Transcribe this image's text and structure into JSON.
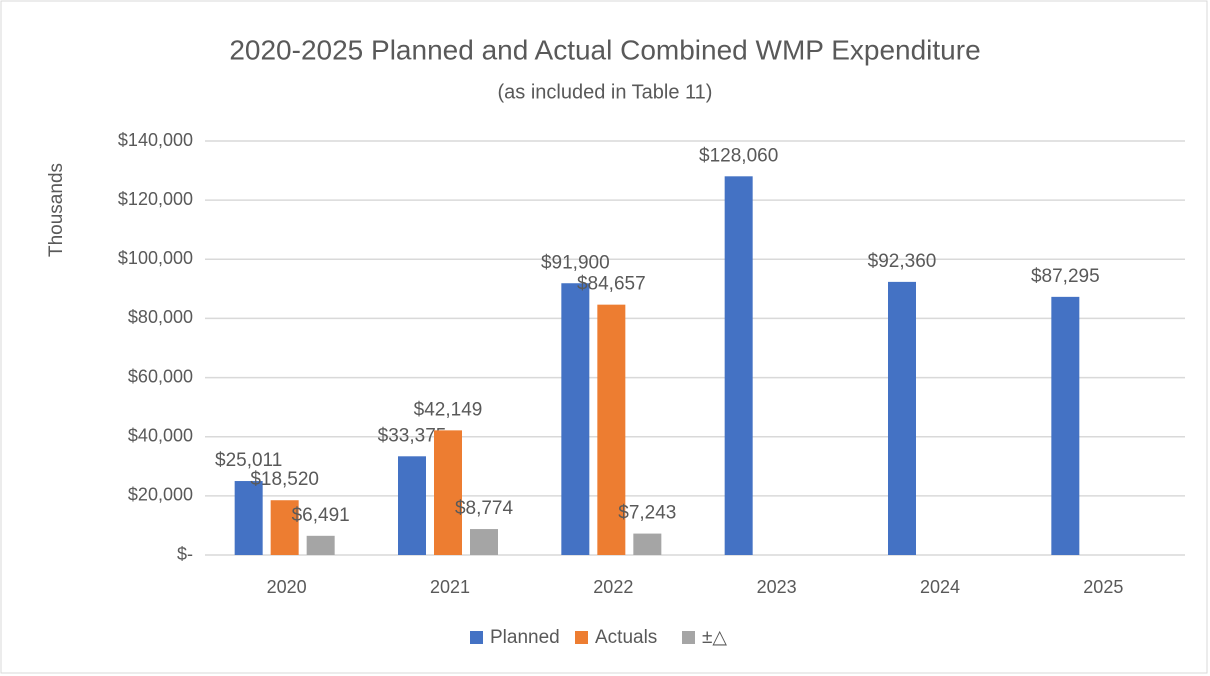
{
  "chart_data": {
    "type": "bar",
    "title": "2020-2025 Planned and Actual Combined WMP Expenditure",
    "subtitle": "(as included in Table 11)",
    "y_label": "Thousands",
    "categories": [
      "2020",
      "2021",
      "2022",
      "2023",
      "2024",
      "2025"
    ],
    "series": [
      {
        "name": "Planned",
        "color": "#4472c4",
        "values": [
          25011,
          33375,
          91900,
          128060,
          92360,
          87295
        ],
        "value_labels": [
          "$25,011",
          "$33,375",
          "$91,900",
          "$128,060",
          "$92,360",
          "$87,295"
        ]
      },
      {
        "name": "Actuals",
        "color": "#ed7d31",
        "values": [
          18520,
          42149,
          84657,
          null,
          null,
          null
        ],
        "value_labels": [
          "$18,520",
          "$42,149",
          "$84,657",
          null,
          null,
          null
        ]
      },
      {
        "name": "±△",
        "color": "#a5a5a5",
        "values": [
          6491,
          8774,
          7243,
          null,
          null,
          null
        ],
        "value_labels": [
          "$6,491",
          "$8,774",
          "$7,243",
          null,
          null,
          null
        ]
      }
    ],
    "ylim": [
      0,
      140000
    ],
    "yticks": [
      {
        "value": 0,
        "label": "$-"
      },
      {
        "value": 20000,
        "label": "$20,000"
      },
      {
        "value": 40000,
        "label": "$40,000"
      },
      {
        "value": 60000,
        "label": "$60,000"
      },
      {
        "value": 80000,
        "label": "$80,000"
      },
      {
        "value": 100000,
        "label": "$100,000"
      },
      {
        "value": 120000,
        "label": "$120,000"
      },
      {
        "value": 140000,
        "label": "$140,000"
      }
    ],
    "grid": true,
    "legend": "bottom"
  }
}
